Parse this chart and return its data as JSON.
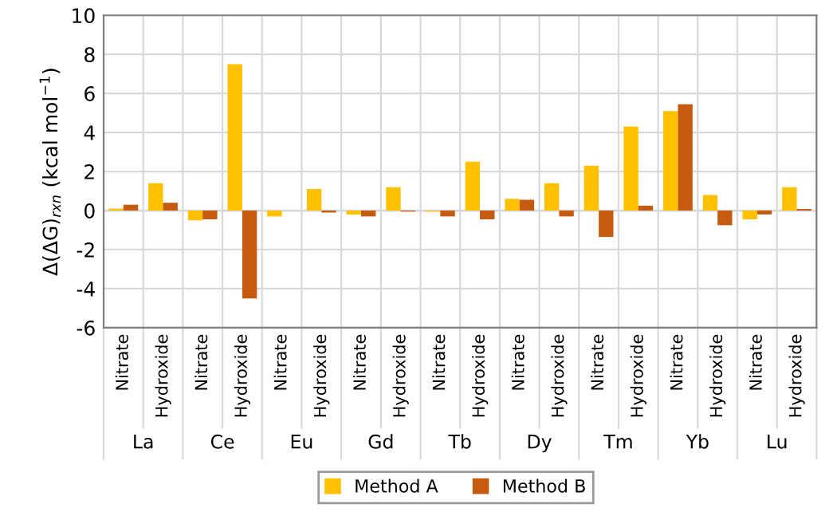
{
  "chart_data": {
    "type": "bar",
    "ylabel": "Δ(ΔG)$_{rxn}$ (kcal mol$^{−1}$)",
    "categories": [
      "Nitrate",
      "Hydroxide",
      "Nitrate",
      "Hydroxide",
      "Nitrate",
      "Hydroxide",
      "Nitrate",
      "Hydroxide",
      "Nitrate",
      "Hydroxide",
      "Nitrate",
      "Hydroxide",
      "Nitrate",
      "Hydroxide",
      "Nitrate",
      "Hydroxide",
      "Nitrate",
      "Hydroxide"
    ],
    "annotations": [
      "La",
      "Ce",
      "Eu",
      "Gd",
      "Tb",
      "Dy",
      "Tm",
      "Yb",
      "Lu"
    ],
    "series": [
      {
        "name": "Method A",
        "color": "#ffc000",
        "values": [
          0.1,
          1.4,
          -0.5,
          7.5,
          -0.3,
          1.1,
          -0.2,
          1.2,
          -0.05,
          2.5,
          0.6,
          1.4,
          2.3,
          4.3,
          5.1,
          0.8,
          -0.45,
          1.2
        ]
      },
      {
        "name": "Method B",
        "color": "#c55a11",
        "values": [
          0.3,
          0.4,
          -0.45,
          -4.5,
          null,
          -0.1,
          -0.3,
          -0.05,
          -0.3,
          -0.45,
          0.55,
          -0.3,
          -1.35,
          0.25,
          5.45,
          -0.75,
          -0.2,
          0.08
        ]
      }
    ],
    "ylim": [
      -6,
      10
    ],
    "yticks": [
      -6,
      -4,
      -2,
      0,
      2,
      4,
      6,
      8,
      10
    ],
    "grid": true,
    "legend": "bottom"
  }
}
